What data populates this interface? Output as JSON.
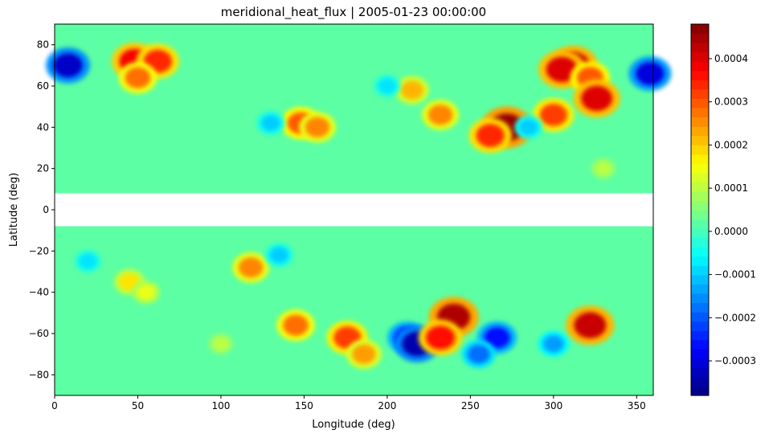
{
  "chart_data": {
    "type": "heatmap",
    "title": "meridional_heat_flux | 2005-01-23 00:00:00",
    "xlabel": "Longitude (deg)",
    "ylabel": "Latitude (deg)",
    "xlim": [
      0,
      360
    ],
    "ylim": [
      -90,
      90
    ],
    "xticks": [
      0,
      50,
      100,
      150,
      200,
      250,
      300,
      350
    ],
    "yticks": [
      -80,
      -60,
      -40,
      -20,
      0,
      20,
      40,
      60,
      80
    ],
    "grid": false,
    "colormap": "jet",
    "missing_band_lat": [
      -8,
      8
    ],
    "missing_color": "#ffffff",
    "background_value": 2e-05,
    "colorbar": {
      "range": [
        -0.00038,
        0.00048
      ],
      "ticks": [
        -0.0003,
        -0.0002,
        -0.0001,
        0.0,
        0.0001,
        0.0002,
        0.0003,
        0.0004
      ],
      "tick_labels": [
        "−0.0003",
        "−0.0002",
        "−0.0001",
        "0.0000",
        "0.0001",
        "0.0002",
        "0.0003",
        "0.0004"
      ]
    },
    "features": [
      {
        "lon": 8,
        "lat": 70,
        "value": -0.00032
      },
      {
        "lon": 358,
        "lat": 66,
        "value": -0.0003
      },
      {
        "lon": 48,
        "lat": 72,
        "value": 0.00038
      },
      {
        "lon": 62,
        "lat": 72,
        "value": 0.00034
      },
      {
        "lon": 50,
        "lat": 64,
        "value": 0.00028
      },
      {
        "lon": 148,
        "lat": 42,
        "value": 0.0003
      },
      {
        "lon": 158,
        "lat": 40,
        "value": 0.00026
      },
      {
        "lon": 130,
        "lat": 42,
        "value": -0.0001
      },
      {
        "lon": 215,
        "lat": 58,
        "value": 0.00022
      },
      {
        "lon": 232,
        "lat": 46,
        "value": 0.00026
      },
      {
        "lon": 272,
        "lat": 40,
        "value": 0.00046
      },
      {
        "lon": 262,
        "lat": 36,
        "value": 0.00034
      },
      {
        "lon": 312,
        "lat": 70,
        "value": 0.00042
      },
      {
        "lon": 305,
        "lat": 68,
        "value": 0.0004
      },
      {
        "lon": 322,
        "lat": 64,
        "value": 0.0003
      },
      {
        "lon": 326,
        "lat": 54,
        "value": 0.0004
      },
      {
        "lon": 300,
        "lat": 46,
        "value": 0.00032
      },
      {
        "lon": 285,
        "lat": 40,
        "value": -0.0001
      },
      {
        "lon": 200,
        "lat": 60,
        "value": -8e-05
      },
      {
        "lon": 118,
        "lat": -28,
        "value": 0.00026
      },
      {
        "lon": 45,
        "lat": -35,
        "value": 0.00018
      },
      {
        "lon": 55,
        "lat": -40,
        "value": 0.00014
      },
      {
        "lon": 135,
        "lat": -22,
        "value": -0.0001
      },
      {
        "lon": 145,
        "lat": -56,
        "value": 0.00028
      },
      {
        "lon": 176,
        "lat": -62,
        "value": 0.00032
      },
      {
        "lon": 186,
        "lat": -70,
        "value": 0.00024
      },
      {
        "lon": 212,
        "lat": -62,
        "value": -0.00026
      },
      {
        "lon": 218,
        "lat": -65,
        "value": -0.00034
      },
      {
        "lon": 240,
        "lat": -52,
        "value": 0.00044
      },
      {
        "lon": 232,
        "lat": -62,
        "value": 0.00036
      },
      {
        "lon": 266,
        "lat": -62,
        "value": -0.00026
      },
      {
        "lon": 255,
        "lat": -70,
        "value": -0.00018
      },
      {
        "lon": 322,
        "lat": -56,
        "value": 0.00042
      },
      {
        "lon": 300,
        "lat": -65,
        "value": -0.00014
      },
      {
        "lon": 20,
        "lat": -25,
        "value": -8e-05
      },
      {
        "lon": 100,
        "lat": -65,
        "value": 0.0001
      },
      {
        "lon": 330,
        "lat": 20,
        "value": 0.0001
      }
    ]
  }
}
